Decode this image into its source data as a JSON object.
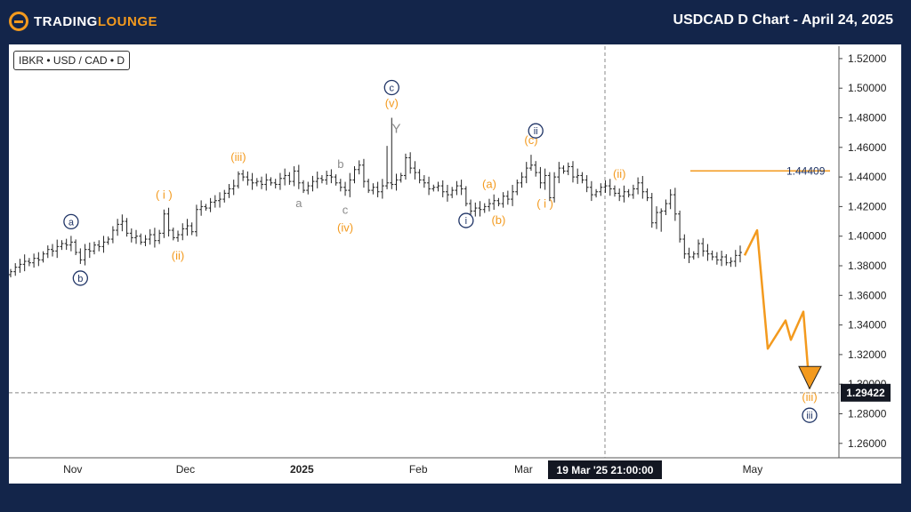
{
  "header": {
    "brand_prefix": "TRADING",
    "brand_suffix": "LOUNGE",
    "title": "USDCAD D Chart - April 24, 2025"
  },
  "symbol_label": "IBKR • USD / CAD • D",
  "crosshair": {
    "date_label": "19 Mar '25   21:00:00",
    "price_label": "1.29422"
  },
  "colors": {
    "bullish": "#f39a1e",
    "neutral": "#8a8a8a",
    "navy": "#1f3466",
    "target_line": "#f39a1e"
  },
  "chart_data": {
    "type": "candlestick",
    "ylim": [
      1.25,
      1.53
    ],
    "yticks": [
      "1.52000",
      "1.50000",
      "1.48000",
      "1.46000",
      "1.44000",
      "1.42000",
      "1.40000",
      "1.38000",
      "1.36000",
      "1.34000",
      "1.32000",
      "1.30000",
      "1.28000",
      "1.26000"
    ],
    "xticks": [
      {
        "label": "Nov",
        "date": "2024-11-01"
      },
      {
        "label": "Dec",
        "date": "2024-12-01"
      },
      {
        "label": "2025",
        "date": "2025-01-01"
      },
      {
        "label": "Feb",
        "date": "2025-02-01"
      },
      {
        "label": "Mar",
        "date": "2025-03-01"
      },
      {
        "label": "May",
        "date": "2025-05-01"
      }
    ],
    "horizontal_level": {
      "value": 1.44409,
      "label": "1.44409"
    },
    "crosshair_price": 1.29422,
    "closes": [
      1.376,
      1.379,
      1.381,
      1.383,
      1.382,
      1.385,
      1.384,
      1.388,
      1.391,
      1.39,
      1.393,
      1.395,
      1.394,
      1.396,
      1.389,
      1.384,
      1.391,
      1.39,
      1.394,
      1.393,
      1.396,
      1.398,
      1.404,
      1.408,
      1.41,
      1.402,
      1.399,
      1.4,
      1.396,
      1.398,
      1.401,
      1.397,
      1.402,
      1.415,
      1.404,
      1.399,
      1.401,
      1.405,
      1.407,
      1.403,
      1.418,
      1.42,
      1.419,
      1.423,
      1.424,
      1.425,
      1.429,
      1.432,
      1.434,
      1.442,
      1.44,
      1.438,
      1.436,
      1.437,
      1.435,
      1.438,
      1.436,
      1.435,
      1.439,
      1.441,
      1.437,
      1.444,
      1.436,
      1.431,
      1.434,
      1.437,
      1.439,
      1.438,
      1.441,
      1.44,
      1.436,
      1.433,
      1.431,
      1.438,
      1.445,
      1.448,
      1.437,
      1.431,
      1.433,
      1.43,
      1.434,
      1.436,
      1.435,
      1.438,
      1.441,
      1.453,
      1.446,
      1.443,
      1.438,
      1.436,
      1.432,
      1.433,
      1.434,
      1.43,
      1.428,
      1.431,
      1.434,
      1.432,
      1.422,
      1.417,
      1.419,
      1.418,
      1.42,
      1.422,
      1.424,
      1.422,
      1.427,
      1.425,
      1.43,
      1.436,
      1.44,
      1.446,
      1.448,
      1.443,
      1.436,
      1.441,
      1.426,
      1.44,
      1.446,
      1.444,
      1.447,
      1.44,
      1.441,
      1.438,
      1.433,
      1.428,
      1.43,
      1.433,
      1.434,
      1.432,
      1.429,
      1.427,
      1.43,
      1.428,
      1.432,
      1.436,
      1.43,
      1.426,
      1.409,
      1.416,
      1.417,
      1.422,
      1.428,
      1.415,
      1.398,
      1.388,
      1.386,
      1.388,
      1.395,
      1.39,
      1.388,
      1.386,
      1.384,
      1.386,
      1.382,
      1.383,
      1.387,
      1.389
    ],
    "projection": [
      1.387,
      1.404,
      1.324,
      1.343,
      1.33,
      1.349,
      1.297
    ],
    "wave_labels": [
      {
        "text": "a",
        "style": "circle-navy",
        "i": 13,
        "side": "above"
      },
      {
        "text": "b",
        "style": "circle-navy",
        "i": 15,
        "side": "below"
      },
      {
        "text": "( i )",
        "style": "orange",
        "i": 33,
        "side": "above"
      },
      {
        "text": "(ii)",
        "style": "orange",
        "i": 36,
        "side": "below"
      },
      {
        "text": "(iii)",
        "style": "orange",
        "i": 49,
        "side": "above"
      },
      {
        "text": "a",
        "style": "gray",
        "i": 62,
        "side": "below"
      },
      {
        "text": "b",
        "style": "gray",
        "i": 71,
        "side": "above"
      },
      {
        "text": "c",
        "style": "gray",
        "i": 72,
        "side": "below"
      },
      {
        "text": "(iv)",
        "style": "orange",
        "i": 72,
        "side": "below2"
      },
      {
        "text": "(v)",
        "style": "orange",
        "i": 82,
        "side": "above"
      },
      {
        "text": "c",
        "style": "circle-navy",
        "i": 82,
        "side": "above2"
      },
      {
        "text": "Y",
        "style": "gray",
        "i": 83,
        "side": "above3"
      },
      {
        "text": "i",
        "style": "circle-navy",
        "i": 98,
        "side": "below"
      },
      {
        "text": "(a)",
        "style": "orange",
        "i": 103,
        "side": "above"
      },
      {
        "text": "(b)",
        "style": "orange",
        "i": 105,
        "side": "below"
      },
      {
        "text": "(c)",
        "style": "orange",
        "i": 112,
        "side": "above"
      },
      {
        "text": "ii",
        "style": "circle-navy",
        "i": 113,
        "side": "above2"
      },
      {
        "text": "( i )",
        "style": "orange",
        "i": 115,
        "side": "below"
      },
      {
        "text": "(ii)",
        "style": "orange",
        "i": 131,
        "side": "above"
      },
      {
        "text": "(iii)",
        "style": "orange",
        "i": -1,
        "side": "target"
      },
      {
        "text": "iii",
        "style": "circle-navy",
        "i": -1,
        "side": "target2"
      }
    ]
  }
}
